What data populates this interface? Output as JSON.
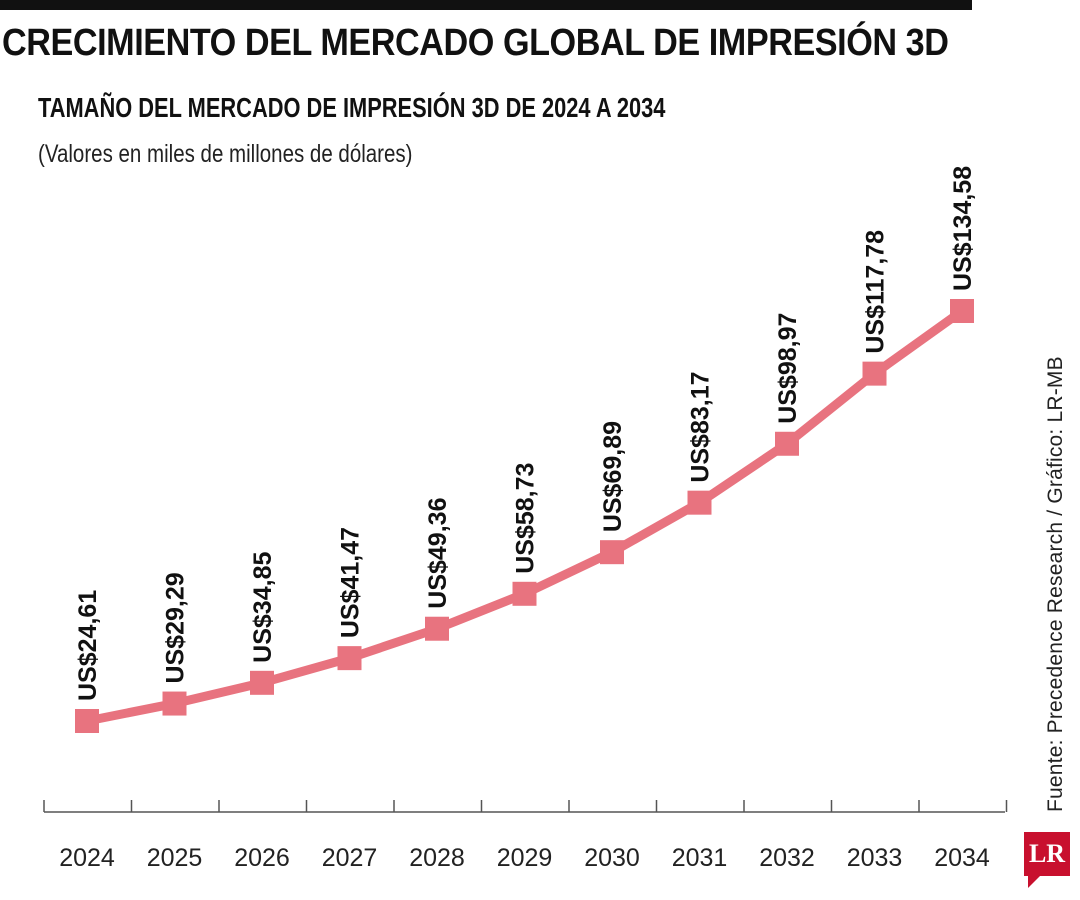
{
  "header": {
    "title": "CRECIMIENTO DEL MERCADO GLOBAL DE IMPRESIÓN 3D",
    "subtitle": "TAMAÑO DEL MERCADO DE IMPRESIÓN 3D DE 2024 A 2034",
    "note": "(Valores en miles de millones de dólares)"
  },
  "source": "Fuente: Precedence Research / Gráfico: LR-MB",
  "logo": "LR",
  "colors": {
    "line": "#e8737f",
    "accent": "#c8102e",
    "text": "#111111"
  },
  "chart_data": {
    "type": "line",
    "categories": [
      "2024",
      "2025",
      "2026",
      "2027",
      "2028",
      "2029",
      "2030",
      "2031",
      "2032",
      "2033",
      "2034"
    ],
    "values": [
      24.61,
      29.29,
      34.85,
      41.47,
      49.36,
      58.73,
      69.89,
      83.17,
      98.97,
      117.78,
      134.58
    ],
    "labels": [
      "US$24,61",
      "US$29,29",
      "US$34,85",
      "US$41,47",
      "US$49,36",
      "US$58,73",
      "US$69,89",
      "US$83,17",
      "US$98,97",
      "US$117,78",
      "US$134,58"
    ],
    "grid": false,
    "legend": "none"
  }
}
